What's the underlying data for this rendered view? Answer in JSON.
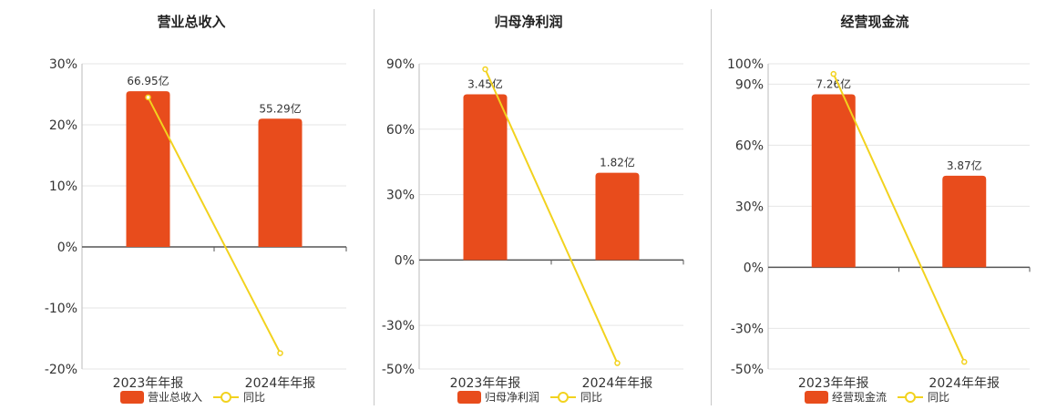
{
  "colors": {
    "bar": "#e84c1c",
    "line": "#f2d21e",
    "grid": "#e6e6e6",
    "axis": "#555555"
  },
  "chart_data": [
    {
      "type": "bar",
      "title": "营业总收入",
      "categories": [
        "2023年年报",
        "2024年年报"
      ],
      "bar_series": {
        "name": "营业总收入",
        "values": [
          25.5,
          21
        ],
        "labels": [
          "66.95亿",
          "55.29亿"
        ]
      },
      "line_series": {
        "name": "同比",
        "values": [
          24.5,
          -17.4
        ]
      },
      "ylim": [
        -20,
        30
      ],
      "yticks": [
        30,
        20,
        10,
        0,
        -10,
        -20
      ],
      "ytick_labels": [
        "30%",
        "20%",
        "10%",
        "0%",
        "-10%",
        "-20%"
      ],
      "grid": true,
      "legend": "bottom"
    },
    {
      "type": "bar",
      "title": "归母净利润",
      "categories": [
        "2023年年报",
        "2024年年报"
      ],
      "bar_series": {
        "name": "归母净利润",
        "values": [
          76,
          40
        ],
        "labels": [
          "3.45亿",
          "1.82亿"
        ]
      },
      "line_series": {
        "name": "同比",
        "values": [
          87.5,
          -47.3
        ]
      },
      "ylim": [
        -50,
        90
      ],
      "yticks": [
        90,
        60,
        30,
        0,
        -30,
        -50
      ],
      "ytick_labels": [
        "90%",
        "60%",
        "30%",
        "0%",
        "-30%",
        "-50%"
      ],
      "grid": true,
      "legend": "bottom"
    },
    {
      "type": "bar",
      "title": "经营现金流",
      "categories": [
        "2023年年报",
        "2024年年报"
      ],
      "bar_series": {
        "name": "经营现金流",
        "values": [
          85,
          45
        ],
        "labels": [
          "7.26亿",
          "3.87亿"
        ]
      },
      "line_series": {
        "name": "同比",
        "values": [
          95,
          -46.5
        ]
      },
      "ylim": [
        -50,
        100
      ],
      "yticks": [
        100,
        90,
        60,
        30,
        0,
        -30,
        -50
      ],
      "ytick_labels": [
        "100%",
        "90%",
        "60%",
        "30%",
        "0%",
        "-30%",
        "-50%"
      ],
      "grid": true,
      "legend": "bottom"
    }
  ]
}
